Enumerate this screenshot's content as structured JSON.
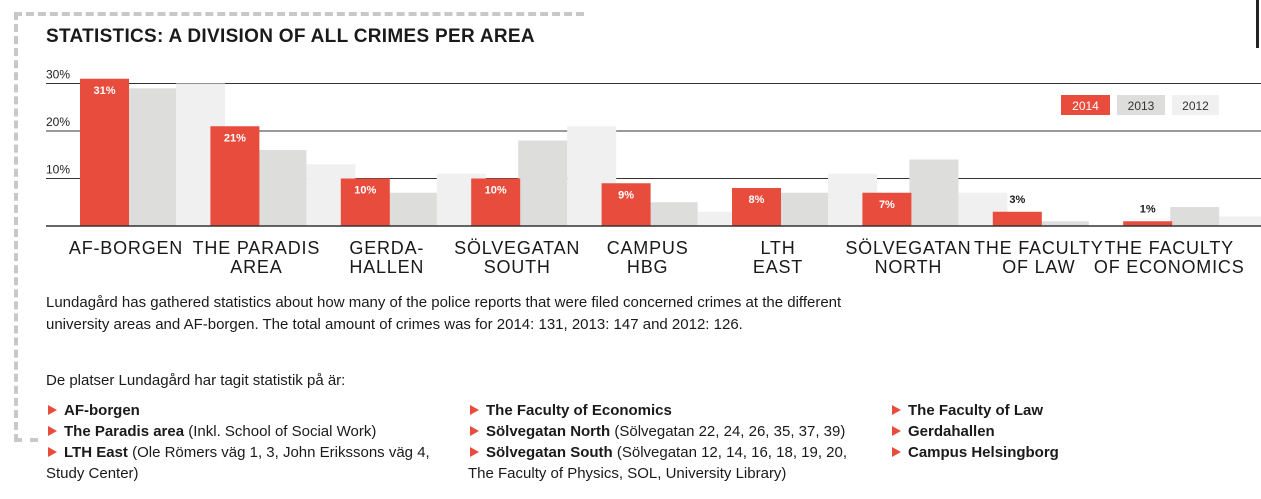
{
  "title": "STATISTICS: A DIVISION OF ALL CRIMES PER AREA",
  "chart_data": {
    "type": "bar",
    "categories": [
      [
        "AF-BORGEN"
      ],
      [
        "THE PARADIS",
        "AREA"
      ],
      [
        "GERDA-",
        "HALLEN"
      ],
      [
        "SÖLVEGATAN",
        "SOUTH"
      ],
      [
        "CAMPUS",
        "HBG"
      ],
      [
        "LTH",
        "EAST"
      ],
      [
        "SÖLVEGATAN",
        "NORTH"
      ],
      [
        "THE FACULTY",
        "OF LAW"
      ],
      [
        "THE FACULTY",
        "OF ECONOMICS"
      ]
    ],
    "series": [
      {
        "name": "2014",
        "color": "#e84c3d",
        "values": [
          31,
          21,
          10,
          10,
          9,
          8,
          7,
          3,
          1
        ]
      },
      {
        "name": "2013",
        "color": "#dddddc",
        "values": [
          29,
          16,
          7,
          18,
          5,
          7,
          14,
          1,
          4
        ]
      },
      {
        "name": "2012",
        "color": "#f0f0f0",
        "values": [
          30,
          13,
          11,
          21,
          3,
          11,
          7,
          0,
          2
        ]
      }
    ],
    "data_labels": [
      "31%",
      "21%",
      "10%",
      "10%",
      "9%",
      "8%",
      "7%",
      "3%",
      "1%"
    ],
    "yticks": [
      {
        "value": 30,
        "label": "30%"
      },
      {
        "value": 20,
        "label": "20%"
      },
      {
        "value": 10,
        "label": "10%"
      }
    ],
    "ylim": [
      0,
      31
    ],
    "grid": true,
    "legend_position": "top-right"
  },
  "description": "Lundagård has gathered statistics about how many of the police reports that were filed concerned crimes at the different university areas and AF-borgen. The total amount of crimes was for 2014: 131, 2013: 147 and 2012: 126.",
  "locations_intro": "De platser Lundagård har tagit statistik på är:",
  "locations": [
    [
      {
        "name": "AF-borgen",
        "detail": ""
      },
      {
        "name": "The Paradis area",
        "detail": " (Inkl. School of Social Work)"
      },
      {
        "name": "LTH East",
        "detail": " (Ole Römers väg 1, 3, John Erikssons väg 4,",
        "continuation": "Study Center)"
      }
    ],
    [
      {
        "name": "The Faculty of Economics",
        "detail": ""
      },
      {
        "name": "Sölvegatan North",
        "detail": " (Sölvegatan 22, 24, 26, 35, 37, 39)"
      },
      {
        "name": "Sölvegatan South",
        "detail": " (Sölvegatan 12, 14, 16, 18, 19, 20,",
        "continuation": "The Faculty of Physics, SOL, University Library)"
      }
    ],
    [
      {
        "name": "The Faculty of Law",
        "detail": ""
      },
      {
        "name": "Gerdahallen",
        "detail": ""
      },
      {
        "name": "Campus Helsingborg",
        "detail": ""
      }
    ]
  ]
}
